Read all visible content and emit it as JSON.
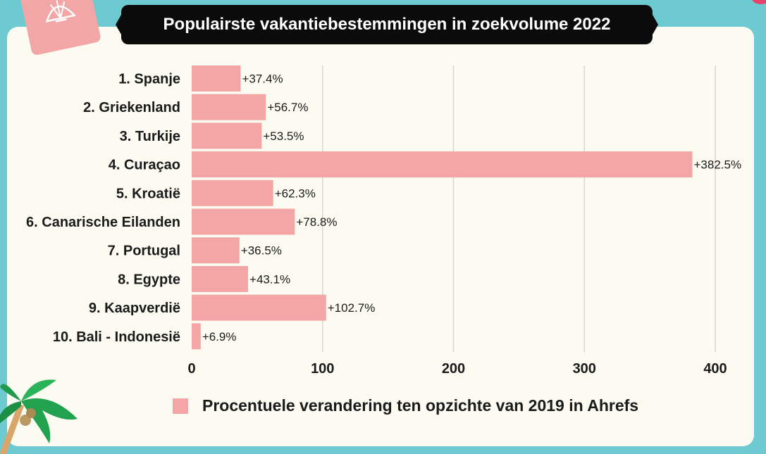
{
  "chart_data": {
    "type": "bar",
    "orientation": "horizontal",
    "title": "Populairste vakantiebestemmingen in zoekvolume 2022",
    "categories": [
      "1. Spanje",
      "2. Griekenland",
      "3. Turkije",
      "4. Curaçao",
      "5. Kroatië",
      "6. Canarische Eilanden",
      "7. Portugal",
      "8. Egypte",
      "9. Kaapverdië",
      "10. Bali - Indonesië"
    ],
    "series": [
      {
        "name": "Procentuele verandering ten opzichte van 2019 in Ahrefs",
        "values": [
          37.4,
          56.7,
          53.5,
          382.5,
          62.3,
          78.8,
          36.5,
          43.1,
          102.7,
          6.9
        ],
        "labels": [
          "+37.4%",
          "+56.7%",
          "+53.5%",
          "+382.5%",
          "+62.3%",
          "+78.8%",
          "+36.5%",
          "+43.1%",
          "+102.7%",
          "+6.9%"
        ]
      }
    ],
    "xticks": [
      "0",
      "100",
      "200",
      "300",
      "400"
    ],
    "xlim": [
      0,
      400
    ],
    "grid": true,
    "legend_position": "bottom",
    "colors": {
      "bar": "#f4a5a5",
      "grid": "#d6d6d2",
      "background": "#fcfbf2",
      "frame": "#6ccad0",
      "title_bg": "#0b0b0b"
    }
  }
}
